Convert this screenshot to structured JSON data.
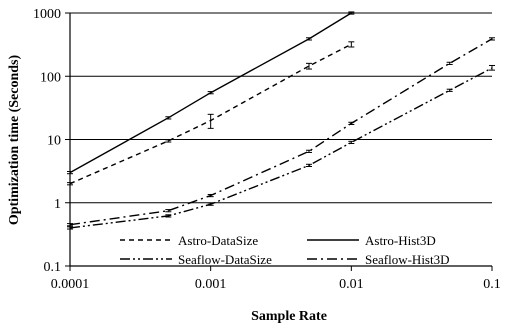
{
  "chart_data": {
    "type": "line",
    "xlabel": "Sample Rate",
    "ylabel": "Optimization time (Seconds)",
    "xscale": "log",
    "yscale": "log",
    "xlim": [
      0.0001,
      0.1
    ],
    "ylim": [
      0.1,
      1000
    ],
    "xticks": [
      0.0001,
      0.001,
      0.01,
      0.1
    ],
    "xtick_labels": [
      "0.0001",
      "0.001",
      "0.01",
      "0.1"
    ],
    "yticks": [
      0.1,
      1,
      10,
      100,
      1000
    ],
    "ytick_labels": [
      "0.1",
      "1",
      "10",
      "100",
      "1000"
    ],
    "grid": "horizontal",
    "legend": "bottom, two columns",
    "series": [
      {
        "name": "Astro-DataSize",
        "dash": "dashed",
        "points": [
          {
            "x": 0.0001,
            "y": 2.0
          },
          {
            "x": 0.0005,
            "y": 9.5
          },
          {
            "x": 0.001,
            "y": 20,
            "err": [
              15,
              25
            ]
          },
          {
            "x": 0.005,
            "y": 145,
            "err": [
              130,
              160
            ]
          },
          {
            "x": 0.01,
            "y": 320,
            "err": [
              290,
              350
            ]
          }
        ]
      },
      {
        "name": "Astro-Hist3D",
        "dash": "solid",
        "points": [
          {
            "x": 0.0001,
            "y": 3.0
          },
          {
            "x": 0.0005,
            "y": 22
          },
          {
            "x": 0.001,
            "y": 55
          },
          {
            "x": 0.005,
            "y": 390
          },
          {
            "x": 0.01,
            "y": 1000
          }
        ]
      },
      {
        "name": "Seaflow-DataSize",
        "dash": "dash-dot-dot",
        "points": [
          {
            "x": 0.0001,
            "y": 0.4
          },
          {
            "x": 0.0005,
            "y": 0.62
          },
          {
            "x": 0.001,
            "y": 0.95
          },
          {
            "x": 0.005,
            "y": 3.9
          },
          {
            "x": 0.01,
            "y": 9.0
          },
          {
            "x": 0.05,
            "y": 60
          },
          {
            "x": 0.1,
            "y": 135,
            "err": [
              125,
              148
            ]
          }
        ]
      },
      {
        "name": "Seaflow-Hist3D",
        "dash": "dash-dot",
        "points": [
          {
            "x": 0.0001,
            "y": 0.45
          },
          {
            "x": 0.0005,
            "y": 0.75
          },
          {
            "x": 0.001,
            "y": 1.3
          },
          {
            "x": 0.005,
            "y": 6.5
          },
          {
            "x": 0.01,
            "y": 18
          },
          {
            "x": 0.05,
            "y": 160
          },
          {
            "x": 0.1,
            "y": 390
          }
        ]
      }
    ]
  }
}
